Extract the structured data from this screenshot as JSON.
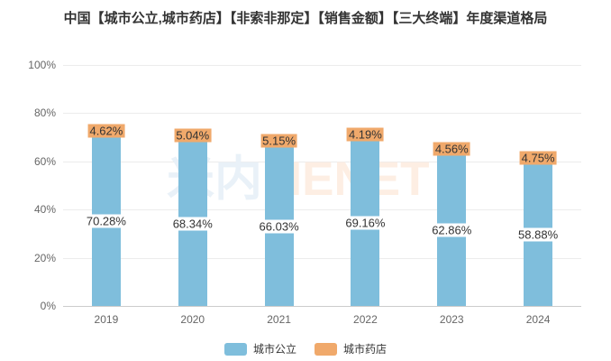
{
  "chart_data": {
    "type": "bar",
    "stacked": true,
    "title": "中国【城市公立,城市药店】【非索非那定】【销售金额】【三大终端】年度渠道格局",
    "categories": [
      "2019",
      "2020",
      "2021",
      "2022",
      "2023",
      "2024"
    ],
    "series": [
      {
        "name": "城市公立",
        "color": "#7FBEDC",
        "label_bg": "#FFFFFF",
        "values": [
          70.28,
          68.34,
          66.03,
          69.16,
          62.86,
          58.88
        ]
      },
      {
        "name": "城市药店",
        "color": "#F0A96B",
        "label_bg": "#F0A96B",
        "values": [
          4.62,
          5.04,
          5.15,
          4.19,
          4.56,
          4.75
        ]
      }
    ],
    "value_suffix": "%",
    "ylim": [
      0,
      100
    ],
    "y_ticks": [
      0,
      20,
      40,
      60,
      80,
      100
    ],
    "y_tick_suffix": "%",
    "grid": true,
    "legend_position": "bottom",
    "colors": {
      "title": "#333333",
      "axis_label": "#666666",
      "grid_line": "#ececec",
      "axis_line": "#cccccc",
      "label_text": "#333333",
      "legend_text": "#333333"
    }
  },
  "watermark": {
    "cn": "米内",
    "en": "MENET",
    "cn_color": "#E9F1F8",
    "en_color": "#FDEEE3"
  }
}
